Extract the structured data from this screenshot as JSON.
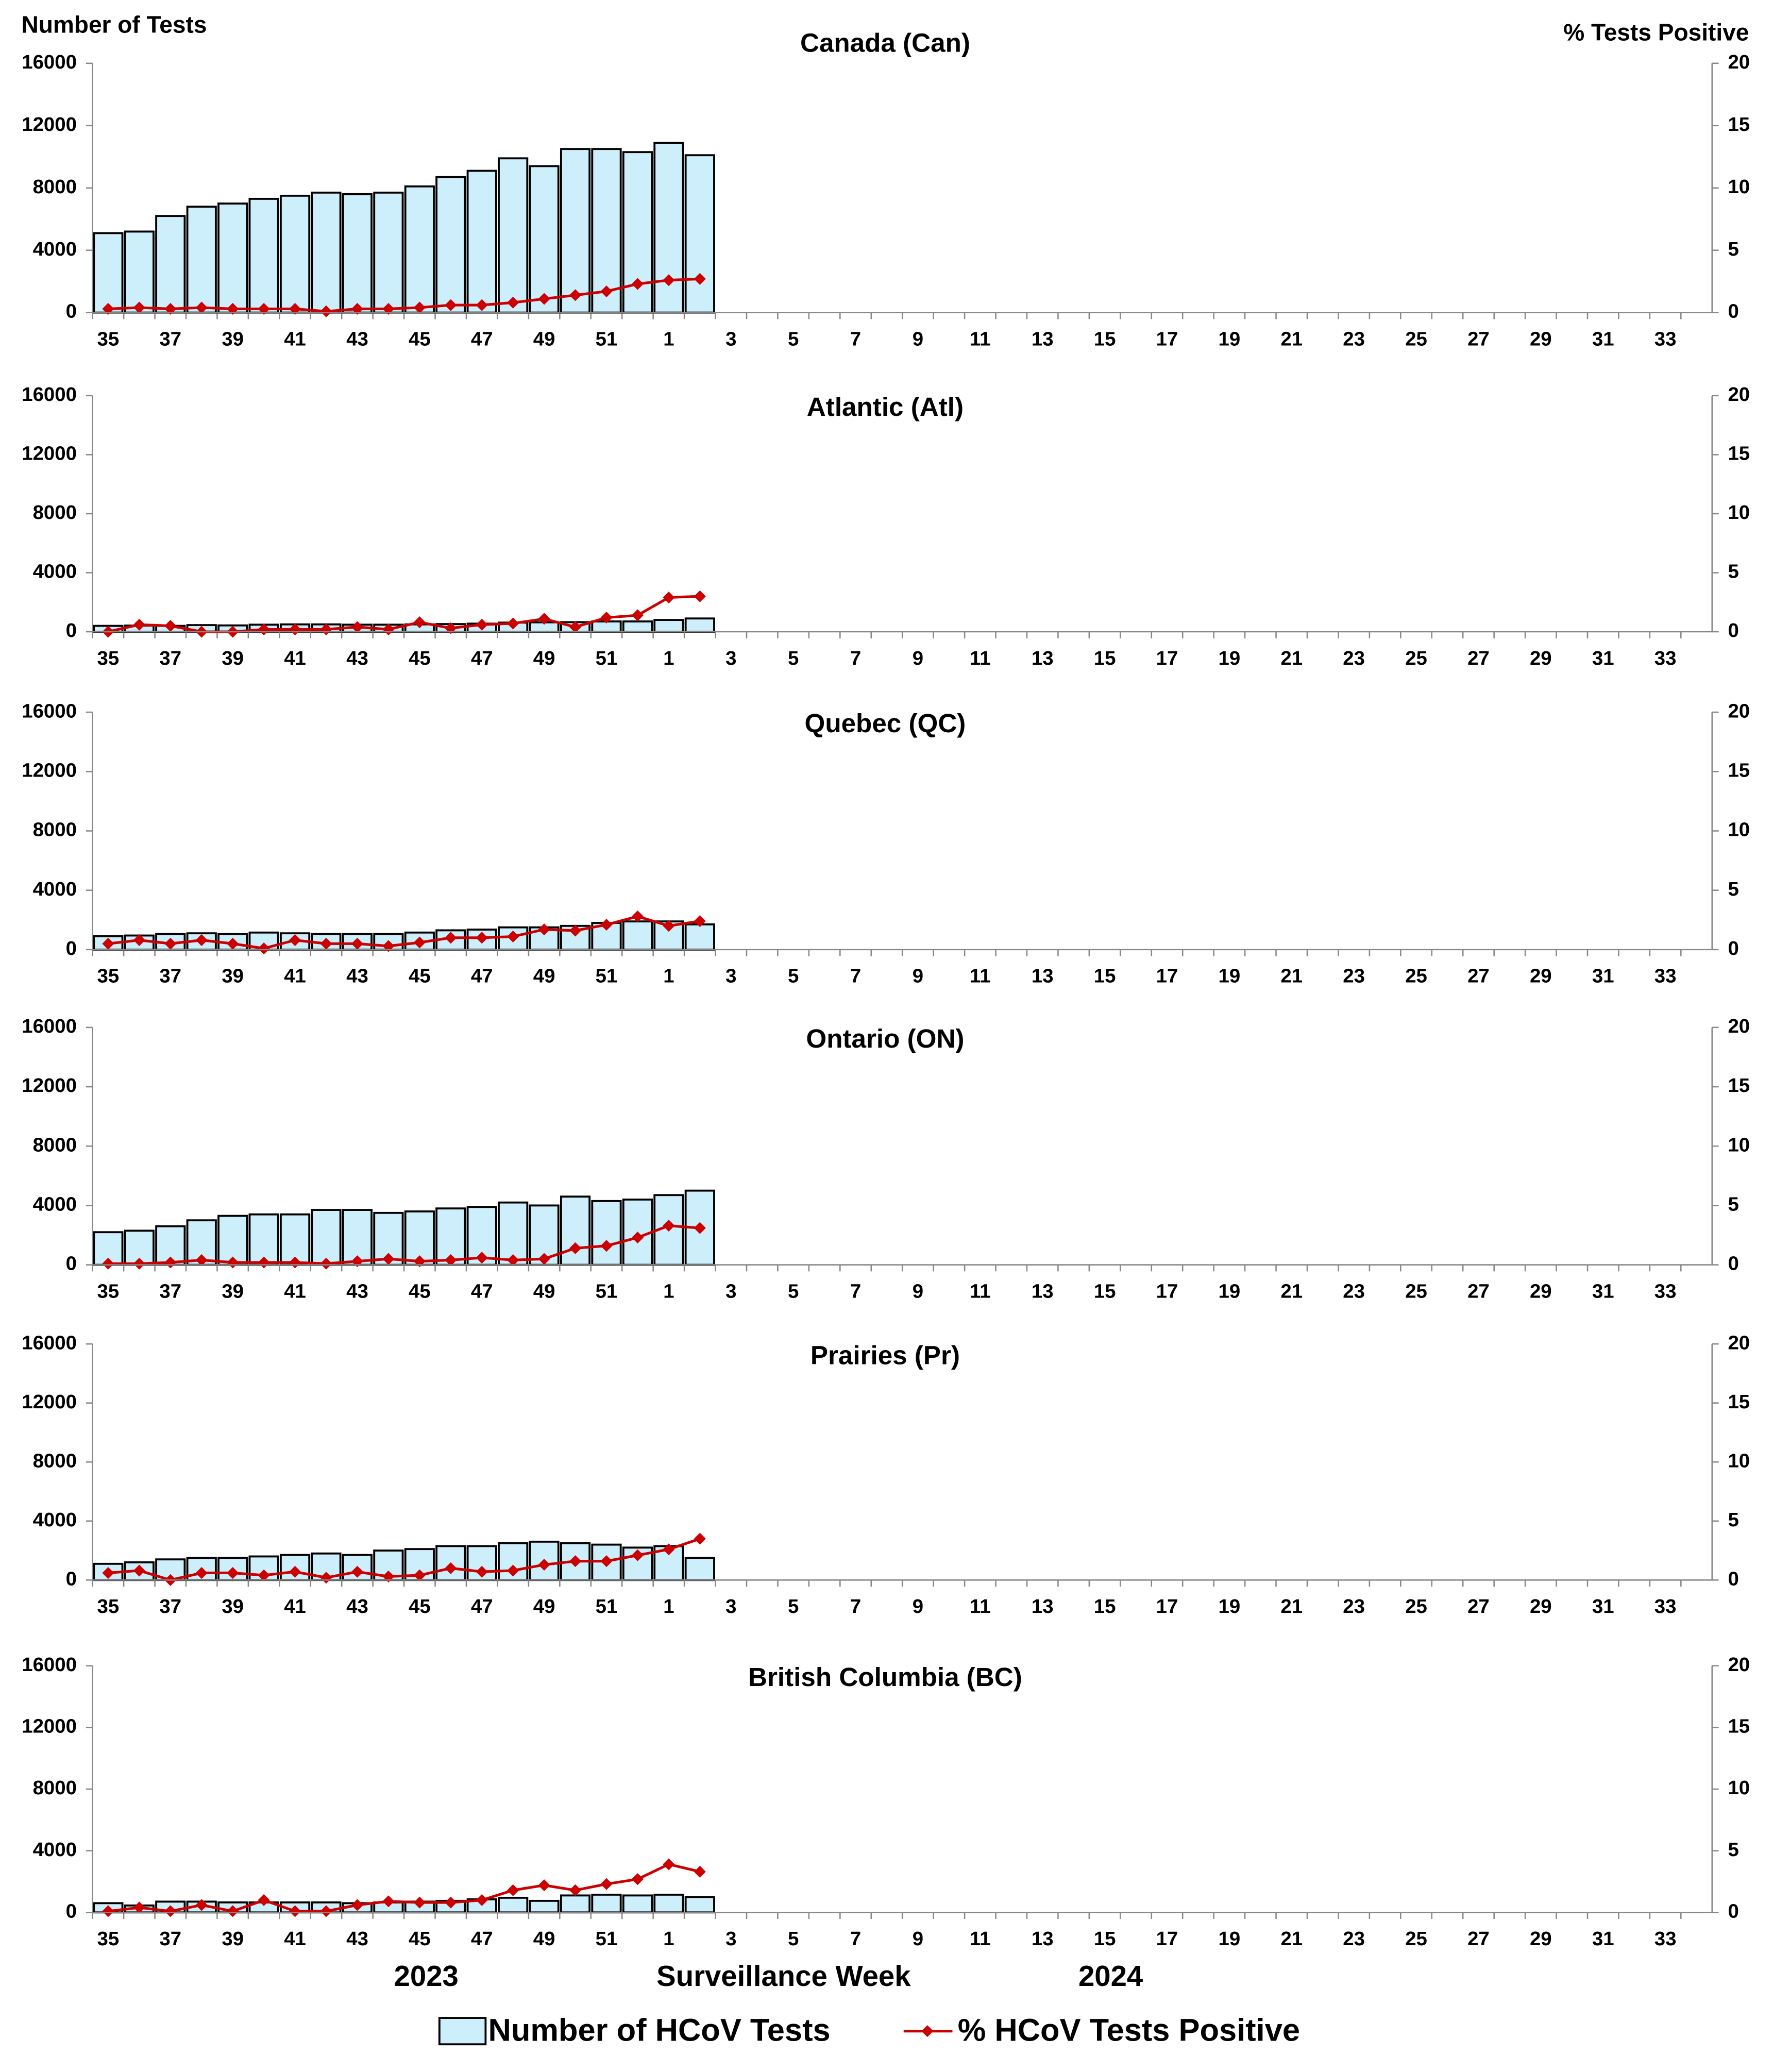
{
  "labels": {
    "y_axis": "Number of Tests",
    "y2_axis": "% Tests Positive",
    "x_axis": "Surveillance Week",
    "years": [
      "2023",
      "2024"
    ]
  },
  "chart_data": [
    {
      "type": "bar_line",
      "title": "Canada (Can)",
      "categories": [
        "35",
        null,
        "37",
        null,
        "39",
        null,
        "41",
        null,
        "43",
        null,
        "45",
        null,
        "47",
        null,
        "49",
        null,
        "51",
        null,
        "1",
        null,
        "3",
        null,
        "5",
        null,
        "7",
        null,
        "9",
        null,
        "11",
        null,
        "13",
        null,
        "15",
        null,
        "17",
        null,
        "19",
        null,
        "21",
        null,
        "23",
        null,
        "25",
        null,
        "27",
        null,
        "29",
        null,
        "31",
        null,
        "33",
        null
      ],
      "series": [
        {
          "name": "Number of HCoV Tests",
          "color": "#cdeefb",
          "values": [
            5100,
            5200,
            6200,
            6800,
            7000,
            7300,
            7500,
            7700,
            7600,
            7700,
            8100,
            8700,
            9100,
            9900,
            9400,
            10500,
            10500,
            10300,
            10900,
            10100,
            null,
            null,
            null,
            null,
            null,
            null,
            null,
            null,
            null,
            null,
            null,
            null,
            null,
            null,
            null,
            null,
            null,
            null,
            null,
            null,
            null,
            null,
            null,
            null,
            null,
            null,
            null,
            null,
            null,
            null,
            null,
            null
          ]
        },
        {
          "name": "% HCoV Tests Positive",
          "color": "#cc0000",
          "axis": "y2",
          "values": [
            0.3,
            0.4,
            0.3,
            0.4,
            0.3,
            0.3,
            0.3,
            0.1,
            0.3,
            0.3,
            0.4,
            0.6,
            0.6,
            0.8,
            1.1,
            1.4,
            1.7,
            2.3,
            2.6,
            2.7,
            null,
            null,
            null,
            null,
            null,
            null,
            null,
            null,
            null,
            null,
            null,
            null,
            null,
            null,
            null,
            null,
            null,
            null,
            null,
            null,
            null,
            null,
            null,
            null,
            null,
            null,
            null,
            null,
            null,
            null,
            null,
            null
          ]
        }
      ],
      "ylim": [
        0,
        16000
      ],
      "yticks": [
        0,
        4000,
        8000,
        12000,
        16000
      ],
      "y2lim": [
        0,
        20
      ],
      "y2ticks": [
        0,
        5,
        10,
        15,
        20
      ]
    },
    {
      "type": "bar_line",
      "title": "Atlantic (Atl)",
      "categories": [
        "35",
        null,
        "37",
        null,
        "39",
        null,
        "41",
        null,
        "43",
        null,
        "45",
        null,
        "47",
        null,
        "49",
        null,
        "51",
        null,
        "1",
        null,
        "3",
        null,
        "5",
        null,
        "7",
        null,
        "9",
        null,
        "11",
        null,
        "13",
        null,
        "15",
        null,
        "17",
        null,
        "19",
        null,
        "21",
        null,
        "23",
        null,
        "25",
        null,
        "27",
        null,
        "29",
        null,
        "31",
        null,
        "33",
        null
      ],
      "series": [
        {
          "color": "#cdeefb",
          "values": [
            400,
            420,
            400,
            450,
            430,
            480,
            500,
            500,
            480,
            480,
            500,
            520,
            550,
            620,
            640,
            650,
            700,
            700,
            800,
            900,
            null,
            null,
            null,
            null,
            null,
            null,
            null,
            null,
            null,
            null,
            null,
            null,
            null,
            null,
            null,
            null,
            null,
            null,
            null,
            null,
            null,
            null,
            null,
            null,
            null,
            null,
            null,
            null,
            null,
            null,
            null,
            null
          ]
        },
        {
          "color": "#cc0000",
          "axis": "y2",
          "values": [
            0,
            0.6,
            0.5,
            0,
            0,
            0.2,
            0.2,
            0.2,
            0.4,
            0.2,
            0.8,
            0.3,
            0.6,
            0.7,
            1.1,
            0.4,
            1.2,
            1.4,
            2.9,
            3.0,
            null,
            null,
            null,
            null,
            null,
            null,
            null,
            null,
            null,
            null,
            null,
            null,
            null,
            null,
            null,
            null,
            null,
            null,
            null,
            null,
            null,
            null,
            null,
            null,
            null,
            null,
            null,
            null,
            null,
            null,
            null,
            null
          ]
        }
      ],
      "ylim": [
        0,
        16000
      ],
      "yticks": [
        0,
        4000,
        8000,
        12000,
        16000
      ],
      "y2lim": [
        0,
        20
      ],
      "y2ticks": [
        0,
        5,
        10,
        15,
        20
      ]
    },
    {
      "type": "bar_line",
      "title": "Quebec (QC)",
      "categories": [
        "35",
        null,
        "37",
        null,
        "39",
        null,
        "41",
        null,
        "43",
        null,
        "45",
        null,
        "47",
        null,
        "49",
        null,
        "51",
        null,
        "1",
        null,
        "3",
        null,
        "5",
        null,
        "7",
        null,
        "9",
        null,
        "11",
        null,
        "13",
        null,
        "15",
        null,
        "17",
        null,
        "19",
        null,
        "21",
        null,
        "23",
        null,
        "25",
        null,
        "27",
        null,
        "29",
        null,
        "31",
        null,
        "33",
        null
      ],
      "series": [
        {
          "color": "#cdeefb",
          "values": [
            900,
            950,
            1050,
            1100,
            1050,
            1150,
            1100,
            1050,
            1050,
            1050,
            1150,
            1300,
            1350,
            1500,
            1500,
            1600,
            1800,
            1900,
            1900,
            1700,
            null,
            null,
            null,
            null,
            null,
            null,
            null,
            null,
            null,
            null,
            null,
            null,
            null,
            null,
            null,
            null,
            null,
            null,
            null,
            null,
            null,
            null,
            null,
            null,
            null,
            null,
            null,
            null,
            null,
            null,
            null,
            null
          ]
        },
        {
          "color": "#cc0000",
          "axis": "y2",
          "values": [
            0.5,
            0.8,
            0.5,
            0.8,
            0.5,
            0.1,
            0.8,
            0.5,
            0.5,
            0.3,
            0.6,
            1.0,
            1.0,
            1.1,
            1.7,
            1.6,
            2.1,
            2.8,
            2.0,
            2.4,
            null,
            null,
            null,
            null,
            null,
            null,
            null,
            null,
            null,
            null,
            null,
            null,
            null,
            null,
            null,
            null,
            null,
            null,
            null,
            null,
            null,
            null,
            null,
            null,
            null,
            null,
            null,
            null,
            null,
            null,
            null,
            null
          ]
        }
      ],
      "ylim": [
        0,
        16000
      ],
      "yticks": [
        0,
        4000,
        8000,
        12000,
        16000
      ],
      "y2lim": [
        0,
        20
      ],
      "y2ticks": [
        0,
        5,
        10,
        15,
        20
      ]
    },
    {
      "type": "bar_line",
      "title": "Ontario (ON)",
      "categories": [
        "35",
        null,
        "37",
        null,
        "39",
        null,
        "41",
        null,
        "43",
        null,
        "45",
        null,
        "47",
        null,
        "49",
        null,
        "51",
        null,
        "1",
        null,
        "3",
        null,
        "5",
        null,
        "7",
        null,
        "9",
        null,
        "11",
        null,
        "13",
        null,
        "15",
        null,
        "17",
        null,
        "19",
        null,
        "21",
        null,
        "23",
        null,
        "25",
        null,
        "27",
        null,
        "29",
        null,
        "31",
        null,
        "33",
        null
      ],
      "series": [
        {
          "color": "#cdeefb",
          "values": [
            2200,
            2300,
            2600,
            3000,
            3300,
            3400,
            3400,
            3700,
            3700,
            3500,
            3600,
            3800,
            3900,
            4200,
            4000,
            4600,
            4300,
            4400,
            4700,
            5000,
            null,
            null,
            null,
            null,
            null,
            null,
            null,
            null,
            null,
            null,
            null,
            null,
            null,
            null,
            null,
            null,
            null,
            null,
            null,
            null,
            null,
            null,
            null,
            null,
            null,
            null,
            null,
            null,
            null,
            null,
            null,
            null
          ]
        },
        {
          "color": "#cc0000",
          "axis": "y2",
          "values": [
            0.1,
            0.1,
            0.2,
            0.4,
            0.2,
            0.2,
            0.2,
            0.1,
            0.3,
            0.5,
            0.3,
            0.4,
            0.6,
            0.4,
            0.5,
            1.4,
            1.6,
            2.3,
            3.3,
            3.1,
            null,
            null,
            null,
            null,
            null,
            null,
            null,
            null,
            null,
            null,
            null,
            null,
            null,
            null,
            null,
            null,
            null,
            null,
            null,
            null,
            null,
            null,
            null,
            null,
            null,
            null,
            null,
            null,
            null,
            null,
            null,
            null
          ]
        }
      ],
      "ylim": [
        0,
        16000
      ],
      "yticks": [
        0,
        4000,
        8000,
        12000,
        16000
      ],
      "y2lim": [
        0,
        20
      ],
      "y2ticks": [
        0,
        5,
        10,
        15,
        20
      ]
    },
    {
      "type": "bar_line",
      "title": "Prairies (Pr)",
      "categories": [
        "35",
        null,
        "37",
        null,
        "39",
        null,
        "41",
        null,
        "43",
        null,
        "45",
        null,
        "47",
        null,
        "49",
        null,
        "51",
        null,
        "1",
        null,
        "3",
        null,
        "5",
        null,
        "7",
        null,
        "9",
        null,
        "11",
        null,
        "13",
        null,
        "15",
        null,
        "17",
        null,
        "19",
        null,
        "21",
        null,
        "23",
        null,
        "25",
        null,
        "27",
        null,
        "29",
        null,
        "31",
        null,
        "33",
        null
      ],
      "series": [
        {
          "color": "#cdeefb",
          "values": [
            1100,
            1200,
            1400,
            1500,
            1500,
            1600,
            1700,
            1800,
            1700,
            2000,
            2100,
            2300,
            2300,
            2500,
            2600,
            2500,
            2400,
            2200,
            2300,
            1500,
            null,
            null,
            null,
            null,
            null,
            null,
            null,
            null,
            null,
            null,
            null,
            null,
            null,
            null,
            null,
            null,
            null,
            null,
            null,
            null,
            null,
            null,
            null,
            null,
            null,
            null,
            null,
            null,
            null,
            null,
            null,
            null
          ]
        },
        {
          "color": "#cc0000",
          "axis": "y2",
          "values": [
            0.6,
            0.8,
            0,
            0.6,
            0.6,
            0.4,
            0.7,
            0.2,
            0.7,
            0.3,
            0.4,
            1.0,
            0.7,
            0.8,
            1.3,
            1.6,
            1.6,
            2.1,
            2.6,
            3.5,
            null,
            null,
            null,
            null,
            null,
            null,
            null,
            null,
            null,
            null,
            null,
            null,
            null,
            null,
            null,
            null,
            null,
            null,
            null,
            null,
            null,
            null,
            null,
            null,
            null,
            null,
            null,
            null,
            null,
            null,
            null,
            null
          ]
        }
      ],
      "ylim": [
        0,
        16000
      ],
      "yticks": [
        0,
        4000,
        8000,
        12000,
        16000
      ],
      "y2lim": [
        0,
        20
      ],
      "y2ticks": [
        0,
        5,
        10,
        15,
        20
      ]
    },
    {
      "type": "bar_line",
      "title": "British Columbia (BC)",
      "categories": [
        "35",
        null,
        "37",
        null,
        "39",
        null,
        "41",
        null,
        "43",
        null,
        "45",
        null,
        "47",
        null,
        "49",
        null,
        "51",
        null,
        "1",
        null,
        "3",
        null,
        "5",
        null,
        "7",
        null,
        "9",
        null,
        "11",
        null,
        "13",
        null,
        "15",
        null,
        "17",
        null,
        "19",
        null,
        "21",
        null,
        "23",
        null,
        "25",
        null,
        "27",
        null,
        "29",
        null,
        "31",
        null,
        "33",
        null
      ],
      "series": [
        {
          "color": "#cdeefb",
          "values": [
            600,
            450,
            700,
            700,
            650,
            650,
            650,
            650,
            600,
            650,
            700,
            750,
            850,
            950,
            750,
            1100,
            1150,
            1100,
            1150,
            1000,
            null,
            null,
            null,
            null,
            null,
            null,
            null,
            null,
            null,
            null,
            null,
            null,
            null,
            null,
            null,
            null,
            null,
            null,
            null,
            null,
            null,
            null,
            null,
            null,
            null,
            null,
            null,
            null,
            null,
            null,
            null,
            null
          ]
        },
        {
          "color": "#cc0000",
          "axis": "y2",
          "values": [
            0.1,
            0.4,
            0.1,
            0.6,
            0.1,
            1.0,
            0.1,
            0.1,
            0.6,
            0.9,
            0.8,
            0.8,
            1.0,
            1.8,
            2.2,
            1.8,
            2.3,
            2.7,
            3.9,
            3.3,
            null,
            null,
            null,
            null,
            null,
            null,
            null,
            null,
            null,
            null,
            null,
            null,
            null,
            null,
            null,
            null,
            null,
            null,
            null,
            null,
            null,
            null,
            null,
            null,
            null,
            null,
            null,
            null,
            null,
            null,
            null,
            null
          ]
        }
      ],
      "ylim": [
        0,
        16000
      ],
      "yticks": [
        0,
        4000,
        8000,
        12000,
        16000
      ],
      "y2lim": [
        0,
        20
      ],
      "y2ticks": [
        0,
        5,
        10,
        15,
        20
      ]
    }
  ]
}
